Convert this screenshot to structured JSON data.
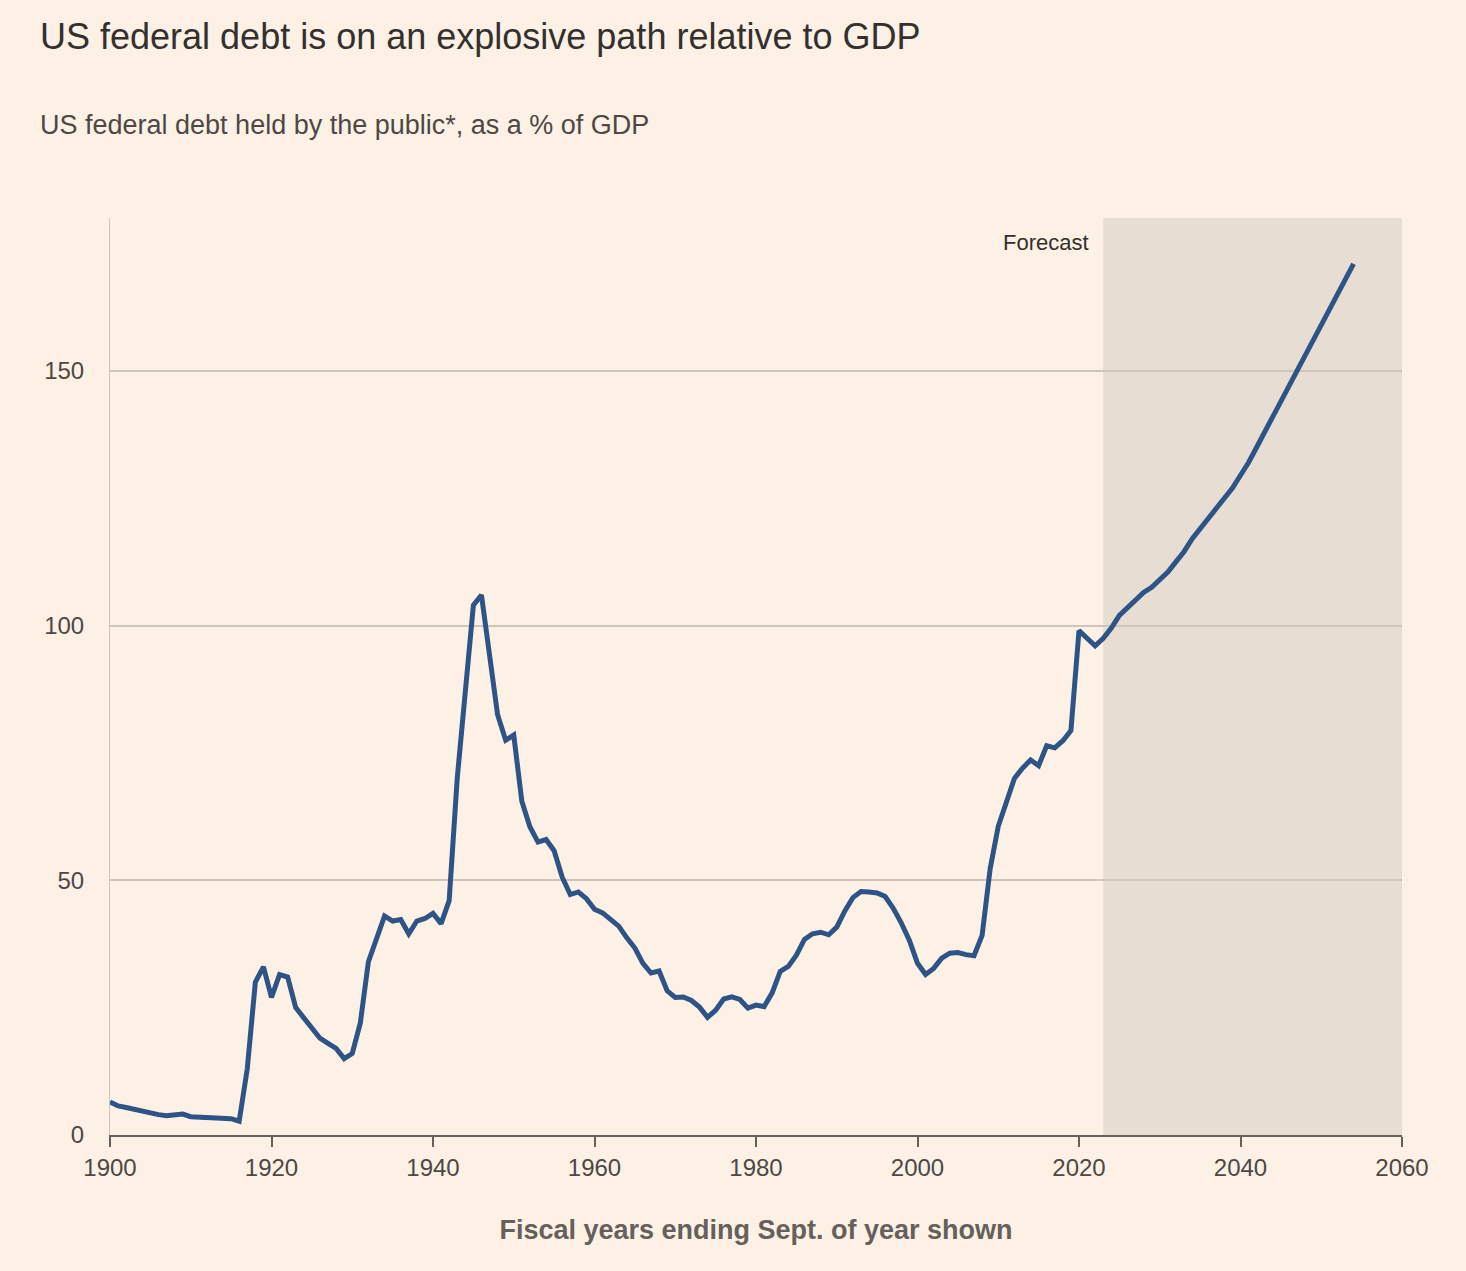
{
  "chart_data": {
    "type": "line",
    "title": "US federal debt is on an explosive path relative to GDP",
    "subtitle": "US federal debt held by the public*, as a % of GDP",
    "x_label": "Fiscal years ending Sept. of year shown",
    "forecast": {
      "text": "Forecast",
      "x_start": 2023
    },
    "color": "#2e5386",
    "x": [
      1900,
      1901,
      1902,
      1903,
      1904,
      1905,
      1906,
      1907,
      1908,
      1909,
      1910,
      1911,
      1912,
      1913,
      1914,
      1915,
      1916,
      1917,
      1918,
      1919,
      1920,
      1921,
      1922,
      1923,
      1924,
      1925,
      1926,
      1927,
      1928,
      1929,
      1930,
      1931,
      1932,
      1933,
      1934,
      1935,
      1936,
      1937,
      1938,
      1939,
      1940,
      1941,
      1942,
      1943,
      1944,
      1945,
      1946,
      1947,
      1948,
      1949,
      1950,
      1951,
      1952,
      1953,
      1954,
      1955,
      1956,
      1957,
      1958,
      1959,
      1960,
      1961,
      1962,
      1963,
      1964,
      1965,
      1966,
      1967,
      1968,
      1969,
      1970,
      1971,
      1972,
      1973,
      1974,
      1975,
      1976,
      1977,
      1978,
      1979,
      1980,
      1981,
      1982,
      1983,
      1984,
      1985,
      1986,
      1987,
      1988,
      1989,
      1990,
      1991,
      1992,
      1993,
      1994,
      1995,
      1996,
      1997,
      1998,
      1999,
      2000,
      2001,
      2002,
      2003,
      2004,
      2005,
      2006,
      2007,
      2008,
      2009,
      2010,
      2011,
      2012,
      2013,
      2014,
      2015,
      2016,
      2017,
      2018,
      2019,
      2020,
      2021,
      2022,
      2023,
      2024,
      2025,
      2026,
      2027,
      2028,
      2029,
      2030,
      2031,
      2032,
      2033,
      2034,
      2035,
      2036,
      2037,
      2038,
      2039,
      2040,
      2041,
      2042,
      2043,
      2044,
      2045,
      2046,
      2047,
      2048,
      2049,
      2050,
      2051,
      2052,
      2053,
      2054
    ],
    "values": [
      6.5,
      5.7,
      5.4,
      5.0,
      4.7,
      4.4,
      4.0,
      3.8,
      3.9,
      4.1,
      3.6,
      3.5,
      3.4,
      3.3,
      3.1,
      3.2,
      2.7,
      13,
      30,
      33,
      27,
      31.5,
      31,
      25,
      23,
      21,
      19,
      18,
      17,
      15,
      16,
      22,
      34,
      38.5,
      43,
      42,
      42.3,
      39.5,
      42,
      42.5,
      43.5,
      41.5,
      46,
      70,
      88,
      104,
      106,
      94,
      82.5,
      77.5,
      78.5,
      65.5,
      60.5,
      57.5,
      58,
      55.8,
      50.6,
      47.2,
      47.7,
      46.4,
      44.3,
      43.6,
      42.3,
      41,
      38.7,
      36.7,
      33.7,
      31.8,
      32.2,
      28.3,
      27,
      27.1,
      26.4,
      25.1,
      23.1,
      24.5,
      26.7,
      27.1,
      26.6,
      24.9,
      25.5,
      25.2,
      27.9,
      32.1,
      33.1,
      35.3,
      38.4,
      39.5,
      39.8,
      39.3,
      40.8,
      44,
      46.6,
      47.8,
      47.7,
      47.5,
      46.8,
      44.5,
      41.6,
      38.2,
      33.7,
      31.5,
      32.7,
      34.7,
      35.7,
      35.8,
      35.4,
      35.2,
      39.2,
      52.3,
      60.6,
      65.5,
      70,
      72,
      73.6,
      72.5,
      76.4,
      76,
      77.4,
      79.4,
      99,
      97.5,
      96,
      97.5,
      99.5,
      102,
      103.5,
      105,
      106.5,
      107.5,
      109,
      110.5,
      112.5,
      114.5,
      117,
      119,
      121,
      123,
      125,
      127,
      129.5,
      132,
      135,
      138,
      141,
      144,
      147,
      150,
      153,
      156,
      159,
      162,
      165,
      168,
      171
    ],
    "xlim": [
      1900,
      2060
    ],
    "xticks": [
      1900,
      1920,
      1940,
      1960,
      1980,
      2000,
      2020,
      2040,
      2060
    ],
    "ylim": [
      0,
      180
    ],
    "yticks": [
      0,
      50,
      100,
      150
    ],
    "grid": true
  }
}
